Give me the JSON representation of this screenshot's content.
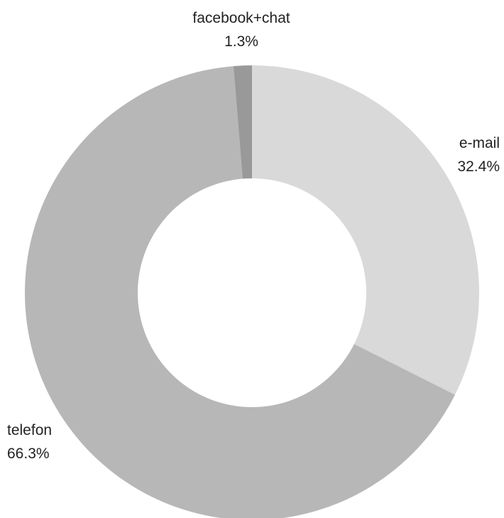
{
  "chart_data": {
    "type": "donut",
    "title": "",
    "start_angle_deg": 0,
    "direction": "clockwise",
    "slices": [
      {
        "label": "e-mail",
        "percent_label": "32.4%",
        "value": 32.4,
        "color": "#d9d9d9"
      },
      {
        "label": "telefon",
        "percent_label": "66.3%",
        "value": 66.3,
        "color": "#b7b7b7"
      },
      {
        "label": "facebook+chat",
        "percent_label": "1.3%",
        "value": 1.3,
        "color": "#999999"
      }
    ],
    "legend": "none",
    "data_labels": "outside"
  }
}
